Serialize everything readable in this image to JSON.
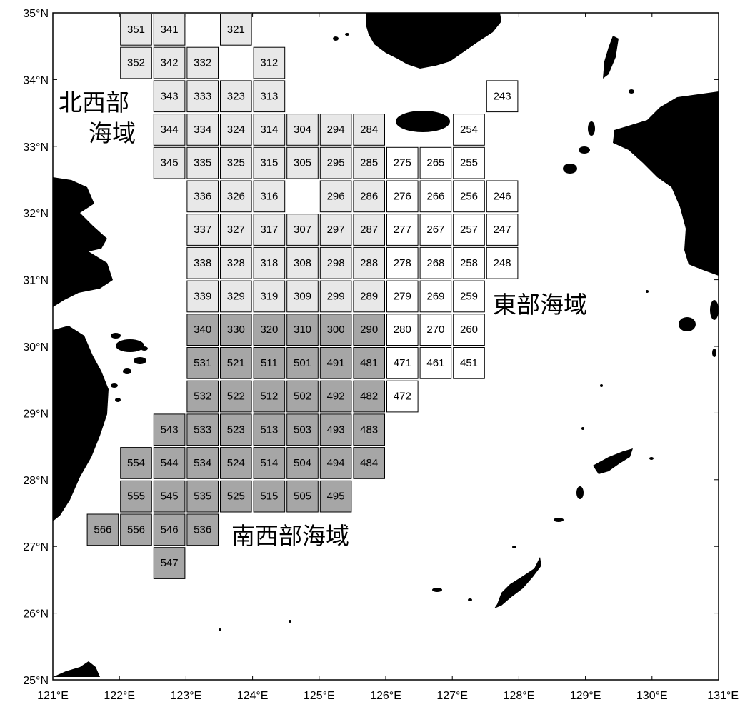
{
  "map": {
    "lon_range": [
      121,
      131
    ],
    "lat_range": [
      25,
      35
    ],
    "x_ticks": [
      "121°E",
      "122°E",
      "123°E",
      "124°E",
      "125°E",
      "126°E",
      "127°E",
      "128°E",
      "129°E",
      "130°E",
      "131°E"
    ],
    "y_ticks": [
      "25°N",
      "26°N",
      "27°N",
      "28°N",
      "29°N",
      "30°N",
      "31°N",
      "32°N",
      "33°N",
      "34°N",
      "35°N"
    ],
    "colors": {
      "northwest": "#e8e8e8",
      "southwest": "#a6a6a6",
      "east": "#ffffff",
      "land": "#000000"
    },
    "regions": [
      {
        "id": "northwest",
        "label_line1": "北西部",
        "label_line2": "海域"
      },
      {
        "id": "east",
        "label": "東部海域"
      },
      {
        "id": "southwest",
        "label": "南西部海域"
      }
    ],
    "cells": [
      {
        "label": "351",
        "region": "northwest"
      },
      {
        "label": "341",
        "region": "northwest"
      },
      {
        "label": "321",
        "region": "northwest"
      },
      {
        "label": "352",
        "region": "northwest"
      },
      {
        "label": "342",
        "region": "northwest"
      },
      {
        "label": "332",
        "region": "northwest"
      },
      {
        "label": "312",
        "region": "northwest"
      },
      {
        "label": "343",
        "region": "northwest"
      },
      {
        "label": "333",
        "region": "northwest"
      },
      {
        "label": "323",
        "region": "northwest"
      },
      {
        "label": "313",
        "region": "northwest"
      },
      {
        "label": "243",
        "region": "east"
      },
      {
        "label": "344",
        "region": "northwest"
      },
      {
        "label": "334",
        "region": "northwest"
      },
      {
        "label": "324",
        "region": "northwest"
      },
      {
        "label": "314",
        "region": "northwest"
      },
      {
        "label": "304",
        "region": "northwest"
      },
      {
        "label": "294",
        "region": "northwest"
      },
      {
        "label": "284",
        "region": "northwest"
      },
      {
        "label": "254",
        "region": "east"
      },
      {
        "label": "345",
        "region": "northwest"
      },
      {
        "label": "335",
        "region": "northwest"
      },
      {
        "label": "325",
        "region": "northwest"
      },
      {
        "label": "315",
        "region": "northwest"
      },
      {
        "label": "305",
        "region": "northwest"
      },
      {
        "label": "295",
        "region": "northwest"
      },
      {
        "label": "285",
        "region": "northwest"
      },
      {
        "label": "275",
        "region": "east"
      },
      {
        "label": "265",
        "region": "east"
      },
      {
        "label": "255",
        "region": "east"
      },
      {
        "label": "336",
        "region": "northwest"
      },
      {
        "label": "326",
        "region": "northwest"
      },
      {
        "label": "316",
        "region": "northwest"
      },
      {
        "label": "296",
        "region": "northwest"
      },
      {
        "label": "286",
        "region": "northwest"
      },
      {
        "label": "276",
        "region": "east"
      },
      {
        "label": "266",
        "region": "east"
      },
      {
        "label": "256",
        "region": "east"
      },
      {
        "label": "246",
        "region": "east"
      },
      {
        "label": "337",
        "region": "northwest"
      },
      {
        "label": "327",
        "region": "northwest"
      },
      {
        "label": "317",
        "region": "northwest"
      },
      {
        "label": "307",
        "region": "northwest"
      },
      {
        "label": "297",
        "region": "northwest"
      },
      {
        "label": "287",
        "region": "northwest"
      },
      {
        "label": "277",
        "region": "east"
      },
      {
        "label": "267",
        "region": "east"
      },
      {
        "label": "257",
        "region": "east"
      },
      {
        "label": "247",
        "region": "east"
      },
      {
        "label": "338",
        "region": "northwest"
      },
      {
        "label": "328",
        "region": "northwest"
      },
      {
        "label": "318",
        "region": "northwest"
      },
      {
        "label": "308",
        "region": "northwest"
      },
      {
        "label": "298",
        "region": "northwest"
      },
      {
        "label": "288",
        "region": "northwest"
      },
      {
        "label": "278",
        "region": "east"
      },
      {
        "label": "268",
        "region": "east"
      },
      {
        "label": "258",
        "region": "east"
      },
      {
        "label": "248",
        "region": "east"
      },
      {
        "label": "339",
        "region": "northwest"
      },
      {
        "label": "329",
        "region": "northwest"
      },
      {
        "label": "319",
        "region": "northwest"
      },
      {
        "label": "309",
        "region": "northwest"
      },
      {
        "label": "299",
        "region": "northwest"
      },
      {
        "label": "289",
        "region": "northwest"
      },
      {
        "label": "279",
        "region": "east"
      },
      {
        "label": "269",
        "region": "east"
      },
      {
        "label": "259",
        "region": "east"
      },
      {
        "label": "340",
        "region": "southwest"
      },
      {
        "label": "330",
        "region": "southwest"
      },
      {
        "label": "320",
        "region": "southwest"
      },
      {
        "label": "310",
        "region": "southwest"
      },
      {
        "label": "300",
        "region": "southwest"
      },
      {
        "label": "290",
        "region": "southwest"
      },
      {
        "label": "280",
        "region": "east"
      },
      {
        "label": "270",
        "region": "east"
      },
      {
        "label": "260",
        "region": "east"
      },
      {
        "label": "531",
        "region": "southwest"
      },
      {
        "label": "521",
        "region": "southwest"
      },
      {
        "label": "511",
        "region": "southwest"
      },
      {
        "label": "501",
        "region": "southwest"
      },
      {
        "label": "491",
        "region": "southwest"
      },
      {
        "label": "481",
        "region": "southwest"
      },
      {
        "label": "471",
        "region": "east"
      },
      {
        "label": "461",
        "region": "east"
      },
      {
        "label": "451",
        "region": "east"
      },
      {
        "label": "532",
        "region": "southwest"
      },
      {
        "label": "522",
        "region": "southwest"
      },
      {
        "label": "512",
        "region": "southwest"
      },
      {
        "label": "502",
        "region": "southwest"
      },
      {
        "label": "492",
        "region": "southwest"
      },
      {
        "label": "482",
        "region": "southwest"
      },
      {
        "label": "472",
        "region": "east"
      },
      {
        "label": "543",
        "region": "southwest"
      },
      {
        "label": "533",
        "region": "southwest"
      },
      {
        "label": "523",
        "region": "southwest"
      },
      {
        "label": "513",
        "region": "southwest"
      },
      {
        "label": "503",
        "region": "southwest"
      },
      {
        "label": "493",
        "region": "southwest"
      },
      {
        "label": "483",
        "region": "southwest"
      },
      {
        "label": "554",
        "region": "southwest"
      },
      {
        "label": "544",
        "region": "southwest"
      },
      {
        "label": "534",
        "region": "southwest"
      },
      {
        "label": "524",
        "region": "southwest"
      },
      {
        "label": "514",
        "region": "southwest"
      },
      {
        "label": "504",
        "region": "southwest"
      },
      {
        "label": "494",
        "region": "southwest"
      },
      {
        "label": "484",
        "region": "southwest"
      },
      {
        "label": "555",
        "region": "southwest"
      },
      {
        "label": "545",
        "region": "southwest"
      },
      {
        "label": "535",
        "region": "southwest"
      },
      {
        "label": "525",
        "region": "southwest"
      },
      {
        "label": "515",
        "region": "southwest"
      },
      {
        "label": "505",
        "region": "southwest"
      },
      {
        "label": "495",
        "region": "southwest"
      },
      {
        "label": "566",
        "region": "southwest"
      },
      {
        "label": "556",
        "region": "southwest"
      },
      {
        "label": "546",
        "region": "southwest"
      },
      {
        "label": "536",
        "region": "southwest"
      },
      {
        "label": "547",
        "region": "southwest"
      }
    ]
  }
}
